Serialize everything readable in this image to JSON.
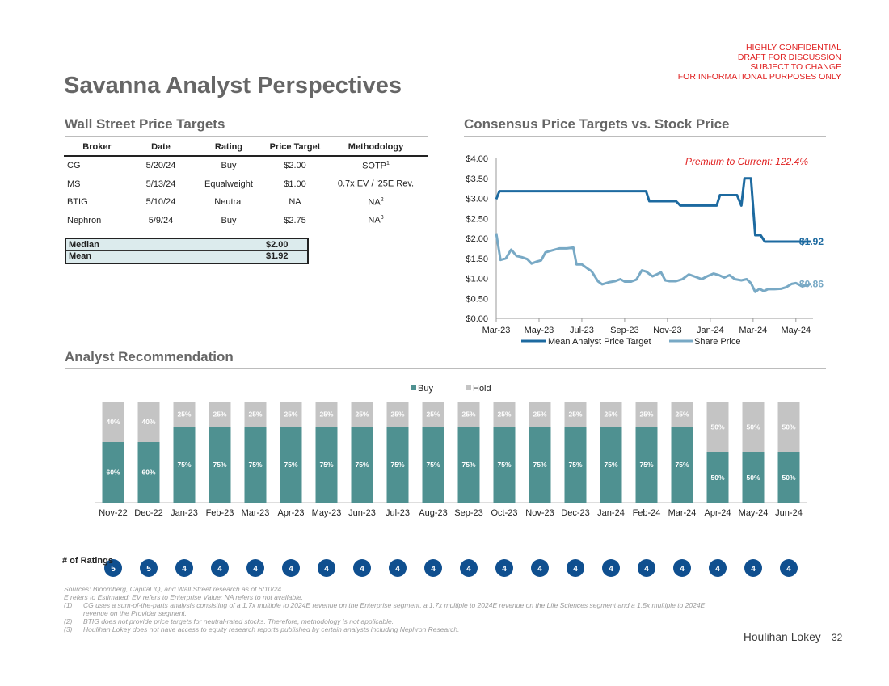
{
  "header": {
    "confidential": [
      "HIGHLY CONFIDENTIAL",
      "DRAFT FOR DISCUSSION",
      "SUBJECT TO CHANGE",
      "FOR INFORMATIONAL PURPOSES ONLY"
    ],
    "title": "Savanna Analyst Perspectives"
  },
  "price_targets": {
    "section_title": "Wall Street Price Targets",
    "columns": [
      "Broker",
      "Date",
      "Rating",
      "Price Target",
      "Methodology"
    ],
    "rows": [
      {
        "broker": "CG",
        "date": "5/20/24",
        "rating": "Buy",
        "target": "$2.00",
        "method": "SOTP",
        "note": "1"
      },
      {
        "broker": "MS",
        "date": "5/13/24",
        "rating": "Equalweight",
        "target": "$1.00",
        "method": "0.7x EV / '25E Rev.",
        "note": ""
      },
      {
        "broker": "BTIG",
        "date": "5/10/24",
        "rating": "Neutral",
        "target": "NA",
        "method": "NA",
        "note": "2"
      },
      {
        "broker": "Nephron",
        "date": "5/9/24",
        "rating": "Buy",
        "target": "$2.75",
        "method": "NA",
        "note": "3"
      }
    ],
    "median_label": "Median",
    "median_value": "$2.00",
    "mean_label": "Mean",
    "mean_value": "$1.92"
  },
  "consensus": {
    "section_title": "Consensus Price Targets vs. Stock Price"
  },
  "recommendation": {
    "section_title": "Analyst Recommendation",
    "ratings_label": "# of Ratings"
  },
  "colors": {
    "mean_target": "#1d6aa0",
    "share_price": "#78a9c5",
    "buy": "#4f9191",
    "hold": "#c4c4c4",
    "accent_red": "#e02020",
    "rating_circle": "#0f4f8f"
  },
  "chart_data": [
    {
      "type": "line",
      "title": "Consensus Price Targets vs. Stock Price",
      "x_ticks": [
        "Mar-23",
        "May-23",
        "Jul-23",
        "Sep-23",
        "Nov-23",
        "Jan-24",
        "Mar-24",
        "May-24"
      ],
      "x_range": [
        0,
        14.8
      ],
      "ylim": [
        0,
        4
      ],
      "y_ticks": [
        "$0.00",
        "$0.50",
        "$1.00",
        "$1.50",
        "$2.00",
        "$2.50",
        "$3.00",
        "$3.50",
        "$4.00"
      ],
      "annotation": "Premium to Current: 122.4%",
      "series": [
        {
          "name": "Mean Analyst Price Target",
          "end_label": "$1.92",
          "points": [
            [
              0,
              2.98
            ],
            [
              0.15,
              3.18
            ],
            [
              0.5,
              3.18
            ],
            [
              1,
              3.18
            ],
            [
              2,
              3.18
            ],
            [
              3,
              3.18
            ],
            [
              4,
              3.18
            ],
            [
              5,
              3.18
            ],
            [
              6,
              3.18
            ],
            [
              7,
              3.18
            ],
            [
              7.15,
              2.93
            ],
            [
              8,
              2.93
            ],
            [
              8.4,
              2.93
            ],
            [
              8.6,
              2.82
            ],
            [
              9,
              2.82
            ],
            [
              10,
              2.82
            ],
            [
              10.3,
              2.82
            ],
            [
              10.45,
              3.08
            ],
            [
              11,
              3.08
            ],
            [
              11.25,
              3.08
            ],
            [
              11.45,
              2.82
            ],
            [
              11.6,
              3.5
            ],
            [
              11.9,
              3.5
            ],
            [
              12.1,
              2.08
            ],
            [
              12.35,
              2.08
            ],
            [
              12.55,
              1.92
            ],
            [
              13,
              1.92
            ],
            [
              14,
              1.92
            ],
            [
              14.7,
              1.92
            ]
          ]
        },
        {
          "name": "Share Price",
          "end_label": "$0.86",
          "points": [
            [
              0,
              2.13
            ],
            [
              0.2,
              1.46
            ],
            [
              0.45,
              1.5
            ],
            [
              0.7,
              1.72
            ],
            [
              0.95,
              1.56
            ],
            [
              1.2,
              1.53
            ],
            [
              1.45,
              1.48
            ],
            [
              1.65,
              1.37
            ],
            [
              1.9,
              1.42
            ],
            [
              2.1,
              1.45
            ],
            [
              2.3,
              1.65
            ],
            [
              2.6,
              1.7
            ],
            [
              2.95,
              1.75
            ],
            [
              3.3,
              1.75
            ],
            [
              3.6,
              1.77
            ],
            [
              3.75,
              1.35
            ],
            [
              4,
              1.35
            ],
            [
              4.25,
              1.25
            ],
            [
              4.45,
              1.18
            ],
            [
              4.75,
              0.93
            ],
            [
              4.95,
              0.85
            ],
            [
              5.25,
              0.9
            ],
            [
              5.55,
              0.93
            ],
            [
              5.8,
              0.98
            ],
            [
              6,
              0.92
            ],
            [
              6.3,
              0.92
            ],
            [
              6.55,
              0.97
            ],
            [
              6.8,
              1.2
            ],
            [
              7,
              1.17
            ],
            [
              7.3,
              1.05
            ],
            [
              7.5,
              1.1
            ],
            [
              7.7,
              1.15
            ],
            [
              7.9,
              0.95
            ],
            [
              8.1,
              0.93
            ],
            [
              8.4,
              0.93
            ],
            [
              8.7,
              0.98
            ],
            [
              9,
              1.1
            ],
            [
              9.3,
              1.04
            ],
            [
              9.6,
              0.98
            ],
            [
              9.85,
              1.05
            ],
            [
              10.15,
              1.12
            ],
            [
              10.4,
              1.08
            ],
            [
              10.65,
              1.02
            ],
            [
              10.9,
              1.08
            ],
            [
              11.15,
              0.98
            ],
            [
              11.45,
              0.95
            ],
            [
              11.7,
              0.98
            ],
            [
              11.9,
              0.88
            ],
            [
              12.1,
              0.66
            ],
            [
              12.3,
              0.74
            ],
            [
              12.5,
              0.68
            ],
            [
              12.7,
              0.73
            ],
            [
              13,
              0.73
            ],
            [
              13.3,
              0.74
            ],
            [
              13.55,
              0.78
            ],
            [
              13.8,
              0.86
            ],
            [
              14,
              0.88
            ],
            [
              14.3,
              0.8
            ],
            [
              14.7,
              0.86
            ]
          ]
        }
      ]
    },
    {
      "type": "bar",
      "stacked": true,
      "categories": [
        "Nov-22",
        "Dec-22",
        "Jan-23",
        "Feb-23",
        "Mar-23",
        "Apr-23",
        "May-23",
        "Jun-23",
        "Jul-23",
        "Aug-23",
        "Sep-23",
        "Oct-23",
        "Nov-23",
        "Dec-23",
        "Jan-24",
        "Feb-24",
        "Mar-24",
        "Apr-24",
        "May-24",
        "Jun-24"
      ],
      "ylim": [
        0,
        100
      ],
      "series": [
        {
          "name": "Buy",
          "values": [
            60,
            60,
            75,
            75,
            75,
            75,
            75,
            75,
            75,
            75,
            75,
            75,
            75,
            75,
            75,
            75,
            75,
            50,
            50,
            50
          ]
        },
        {
          "name": "Hold",
          "values": [
            40,
            40,
            25,
            25,
            25,
            25,
            25,
            25,
            25,
            25,
            25,
            25,
            25,
            25,
            25,
            25,
            25,
            50,
            50,
            50
          ]
        }
      ],
      "num_ratings": [
        5,
        5,
        4,
        4,
        4,
        4,
        4,
        4,
        4,
        4,
        4,
        4,
        4,
        4,
        4,
        4,
        4,
        4,
        4,
        4
      ]
    }
  ],
  "footnotes": {
    "sources": "Sources: Bloomberg, Capital IQ, and Wall Street research as of 6/10/24.",
    "definitions": "E refers to Estimated; EV refers to Enterprise Value; NA refers to not available.",
    "notes": [
      {
        "num": "(1)",
        "text": "CG uses a sum-of-the-parts analysis consisting of a 1.7x multiple to 2024E revenue on the Enterprise segment, a 1.7x multiple to 2024E revenue on the Life Sciences segment and a 1.5x multiple to 2024E revenue on the Provider segment."
      },
      {
        "num": "(2)",
        "text": "BTIG does not provide price targets for neutral-rated stocks. Therefore, methodology is not applicable."
      },
      {
        "num": "(3)",
        "text": "Houlihan Lokey does not have access to equity research reports published by certain analysts including Nephron Research."
      }
    ]
  },
  "footer": {
    "brand": "Houlihan Lokey",
    "page_number": "32"
  }
}
